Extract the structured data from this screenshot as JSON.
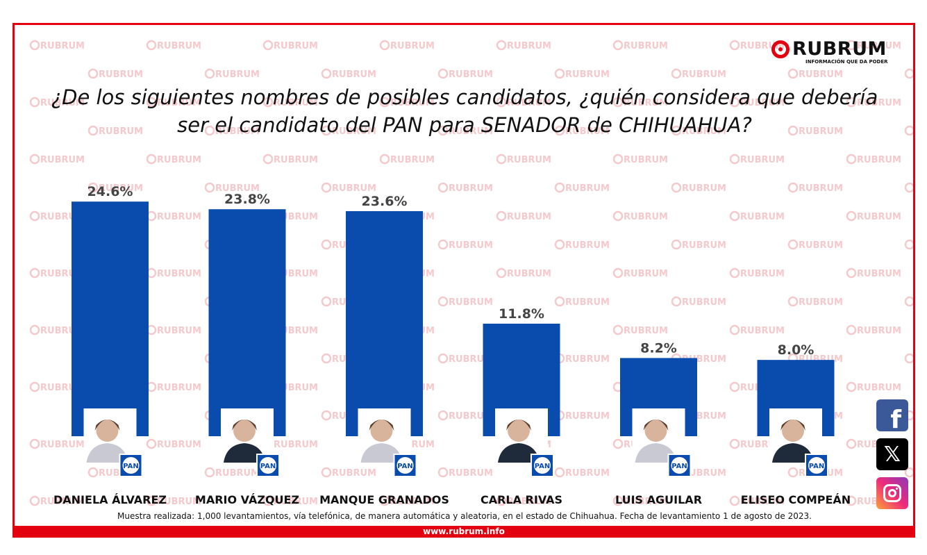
{
  "brand": {
    "name": "RUBRUM",
    "tagline": "INFORMACIÓN QUE DA PODER",
    "website": "www.rubrum.info",
    "accent_color": "#e3000f",
    "bar_color": "#0a4cad"
  },
  "party_badge": "PAN",
  "chart_data": {
    "type": "bar",
    "title": "¿De los siguientes nombres de posibles candidatos, ¿quién considera que debería ser el candidato del PAN para SENADOR de CHIHUAHUA?",
    "categories": [
      "DANIELA ÁLVAREZ",
      "MARIO VÁZQUEZ",
      "MANQUE GRANADOS",
      "CARLA RIVAS",
      "LUIS AGUILAR",
      "ELISEO COMPEÁN"
    ],
    "values": [
      24.6,
      23.8,
      23.6,
      11.8,
      8.2,
      8.0
    ],
    "value_labels": [
      "24.6%",
      "23.8%",
      "23.6%",
      "11.8%",
      "8.2%",
      "8.0%"
    ],
    "unit": "%",
    "ylim": [
      0,
      26
    ],
    "grid": false,
    "legend": "none"
  },
  "note": "Muestra realizada: 1,000 levantamientos, vía telefónica, de manera automática y aleatoria, en el estado de Chihuahua. Fecha de levantamiento 1 de agosto de 2023.",
  "social": [
    {
      "name": "facebook-icon",
      "glyph": "f"
    },
    {
      "name": "x-icon",
      "glyph": "𝕏"
    },
    {
      "name": "instagram-icon",
      "glyph": ""
    }
  ]
}
